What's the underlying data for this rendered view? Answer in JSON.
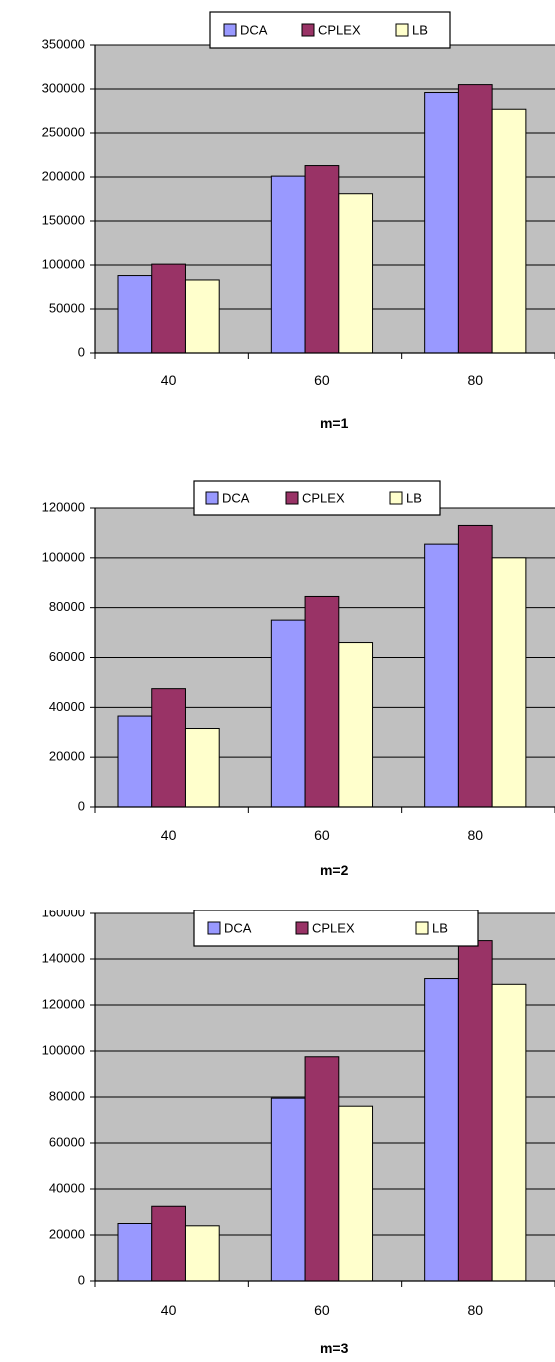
{
  "colors": {
    "DCA": "#9999ff",
    "CPLEX": "#993366",
    "LB": "#ffffcc",
    "plot_background": "#c0c0c0"
  },
  "chart_data": [
    {
      "type": "bar",
      "categories": [
        "40",
        "60",
        "80"
      ],
      "series": [
        {
          "name": "DCA",
          "values": [
            88000,
            201000,
            296000
          ]
        },
        {
          "name": "CPLEX",
          "values": [
            101000,
            213000,
            305000
          ]
        },
        {
          "name": "LB",
          "values": [
            83000,
            181000,
            277000
          ]
        }
      ],
      "xlabel": "m=1",
      "ylim": [
        0,
        350000
      ],
      "yticks": [
        "0",
        "50000",
        "100000",
        "150000",
        "200000",
        "250000",
        "300000",
        "350000"
      ],
      "grid": true,
      "legend_position": "top"
    },
    {
      "type": "bar",
      "categories": [
        "40",
        "60",
        "80"
      ],
      "series": [
        {
          "name": "DCA",
          "values": [
            36500,
            75000,
            105500
          ]
        },
        {
          "name": "CPLEX",
          "values": [
            47500,
            84500,
            113000
          ]
        },
        {
          "name": "LB",
          "values": [
            31500,
            66000,
            100000
          ]
        }
      ],
      "xlabel": "m=2",
      "ylim": [
        0,
        120000
      ],
      "yticks": [
        "0",
        "20000",
        "40000",
        "60000",
        "80000",
        "100000",
        "120000"
      ],
      "grid": true,
      "legend_position": "top"
    },
    {
      "type": "bar",
      "categories": [
        "40",
        "60",
        "80"
      ],
      "series": [
        {
          "name": "DCA",
          "values": [
            25000,
            79500,
            131500
          ]
        },
        {
          "name": "CPLEX",
          "values": [
            32500,
            97500,
            148000
          ]
        },
        {
          "name": "LB",
          "values": [
            24000,
            76000,
            129000
          ]
        }
      ],
      "xlabel": "m=3",
      "ylim": [
        0,
        160000
      ],
      "yticks": [
        "0",
        "20000",
        "40000",
        "60000",
        "80000",
        "100000",
        "120000",
        "140000",
        "160000"
      ],
      "grid": true,
      "legend_position": "top"
    }
  ]
}
